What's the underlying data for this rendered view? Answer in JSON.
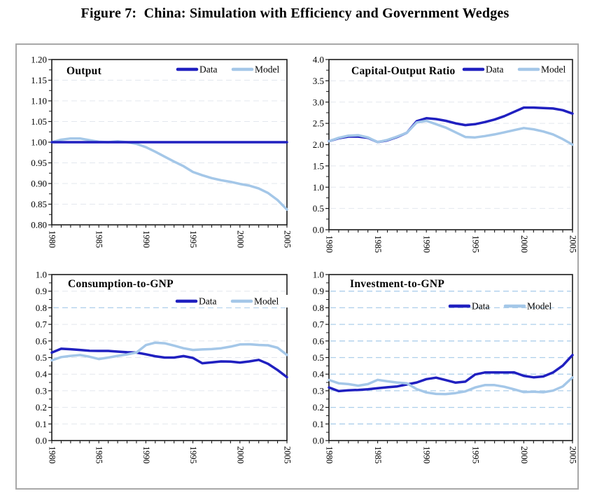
{
  "figure_title": "Figure 7:  China: Simulation with Efficiency and Government Wedges",
  "colors": {
    "data_series": "#2020c0",
    "model_series": "#a4c7e8",
    "grid_faint": "#e3e7ee",
    "grid_strong": "#aecfeb",
    "axis": "#1a1a1a",
    "frame_border": "#a8a8a8",
    "background": "#ffffff",
    "text": "#000000"
  },
  "x_years": [
    1980,
    1981,
    1982,
    1983,
    1984,
    1985,
    1986,
    1987,
    1988,
    1989,
    1990,
    1991,
    1992,
    1993,
    1994,
    1995,
    1996,
    1997,
    1998,
    1999,
    2000,
    2001,
    2002,
    2003,
    2004,
    2005
  ],
  "xtick_labels": [
    "1980",
    "1985",
    "1990",
    "1995",
    "2000",
    "2005"
  ],
  "legend_entries": [
    {
      "label": "Data",
      "color_key": "data_series"
    },
    {
      "label": "Model",
      "color_key": "model_series"
    }
  ],
  "chart_data": [
    {
      "type": "line",
      "title": "Output",
      "xlabel": "",
      "ylabel": "",
      "ylim": [
        0.8,
        1.2
      ],
      "ytick_step": 0.05,
      "ytick_decimals": 2,
      "ytick_labels": [
        "1.20",
        "1.15",
        "1.10",
        "1.05",
        "1.00",
        "0.95",
        "0.90",
        "0.85",
        "0.80"
      ],
      "grid": "on",
      "grid_style": "faint",
      "grid_strong_values": [],
      "legend_position": "inside-top-right",
      "draw_order": [
        "Model",
        "Data"
      ],
      "series": [
        {
          "name": "Data",
          "color_key": "data_series",
          "values": [
            1.0,
            1.0,
            1.0,
            1.0,
            1.0,
            1.0,
            1.0,
            1.0,
            1.0,
            1.0,
            1.0,
            1.0,
            1.0,
            1.0,
            1.0,
            1.0,
            1.0,
            1.0,
            1.0,
            1.0,
            1.0,
            1.0,
            1.0,
            1.0,
            1.0,
            1.0
          ]
        },
        {
          "name": "Model",
          "color_key": "model_series",
          "values": [
            1.0,
            1.006,
            1.009,
            1.009,
            1.005,
            1.001,
            1.0,
            1.002,
            1.0,
            0.996,
            0.988,
            0.977,
            0.965,
            0.953,
            0.942,
            0.928,
            0.92,
            0.913,
            0.908,
            0.904,
            0.899,
            0.895,
            0.888,
            0.877,
            0.86,
            0.837
          ]
        }
      ]
    },
    {
      "type": "line",
      "title": "Capital-Output Ratio",
      "xlabel": "",
      "ylabel": "",
      "ylim": [
        0.0,
        4.0
      ],
      "ytick_step": 0.5,
      "ytick_decimals": 1,
      "ytick_labels": [
        "4.0",
        "3.5",
        "3.0",
        "2.5",
        "2.0",
        "1.5",
        "1.0",
        "0.5",
        "0.0"
      ],
      "grid": "on",
      "grid_style": "faint",
      "grid_strong_values": [],
      "legend_position": "inside-top-right",
      "draw_order": [
        "Data",
        "Model"
      ],
      "series": [
        {
          "name": "Data",
          "color_key": "data_series",
          "values": [
            2.08,
            2.15,
            2.19,
            2.19,
            2.16,
            2.06,
            2.1,
            2.18,
            2.28,
            2.55,
            2.62,
            2.6,
            2.56,
            2.5,
            2.46,
            2.48,
            2.53,
            2.59,
            2.67,
            2.77,
            2.87,
            2.87,
            2.86,
            2.85,
            2.81,
            2.73
          ]
        },
        {
          "name": "Model",
          "color_key": "model_series",
          "values": [
            2.08,
            2.16,
            2.21,
            2.22,
            2.17,
            2.06,
            2.11,
            2.19,
            2.28,
            2.52,
            2.56,
            2.48,
            2.4,
            2.29,
            2.18,
            2.17,
            2.2,
            2.24,
            2.29,
            2.34,
            2.39,
            2.36,
            2.31,
            2.24,
            2.13,
            2.0
          ]
        }
      ]
    },
    {
      "type": "line",
      "title": "Consumption-to-GNP",
      "xlabel": "",
      "ylabel": "",
      "ylim": [
        0.0,
        1.0
      ],
      "ytick_step": 0.1,
      "ytick_decimals": 1,
      "ytick_labels": [
        "1.0",
        "0.9",
        "0.8",
        "0.7",
        "0.6",
        "0.5",
        "0.4",
        "0.3",
        "0.2",
        "0.1",
        "0.0"
      ],
      "grid": "on",
      "grid_style": "faint",
      "grid_strong_values": [
        0.8
      ],
      "legend_position": "inside-upper-right",
      "draw_order": [
        "Data",
        "Model"
      ],
      "series": [
        {
          "name": "Data",
          "color_key": "data_series",
          "values": [
            0.53,
            0.553,
            0.55,
            0.546,
            0.541,
            0.54,
            0.54,
            0.536,
            0.532,
            0.53,
            0.52,
            0.508,
            0.5,
            0.5,
            0.509,
            0.498,
            0.466,
            0.471,
            0.477,
            0.476,
            0.47,
            0.477,
            0.486,
            0.462,
            0.425,
            0.382
          ]
        },
        {
          "name": "Model",
          "color_key": "model_series",
          "values": [
            0.483,
            0.503,
            0.51,
            0.515,
            0.505,
            0.491,
            0.5,
            0.51,
            0.519,
            0.531,
            0.575,
            0.59,
            0.586,
            0.572,
            0.556,
            0.546,
            0.549,
            0.551,
            0.556,
            0.566,
            0.579,
            0.58,
            0.576,
            0.574,
            0.559,
            0.516
          ]
        }
      ]
    },
    {
      "type": "line",
      "title": "Investment-to-GNP",
      "xlabel": "",
      "ylabel": "",
      "ylim": [
        0.0,
        1.0
      ],
      "ytick_step": 0.1,
      "ytick_decimals": 1,
      "ytick_labels": [
        "1.0",
        "0.9",
        "0.8",
        "0.7",
        "0.6",
        "0.5",
        "0.4",
        "0.3",
        "0.2",
        "0.1",
        "0.0"
      ],
      "grid": "on",
      "grid_style": "strong",
      "grid_strong_values": [],
      "legend_position": "inside-upper-right",
      "draw_order": [
        "Data",
        "Model"
      ],
      "series": [
        {
          "name": "Data",
          "color_key": "data_series",
          "values": [
            0.32,
            0.298,
            0.303,
            0.305,
            0.309,
            0.315,
            0.321,
            0.326,
            0.338,
            0.35,
            0.37,
            0.379,
            0.364,
            0.349,
            0.355,
            0.398,
            0.41,
            0.411,
            0.41,
            0.411,
            0.39,
            0.381,
            0.386,
            0.41,
            0.452,
            0.515
          ]
        },
        {
          "name": "Model",
          "color_key": "model_series",
          "values": [
            0.365,
            0.345,
            0.34,
            0.331,
            0.34,
            0.366,
            0.357,
            0.35,
            0.345,
            0.31,
            0.29,
            0.281,
            0.28,
            0.286,
            0.296,
            0.32,
            0.334,
            0.334,
            0.324,
            0.309,
            0.292,
            0.294,
            0.291,
            0.301,
            0.326,
            0.38
          ]
        }
      ]
    }
  ]
}
